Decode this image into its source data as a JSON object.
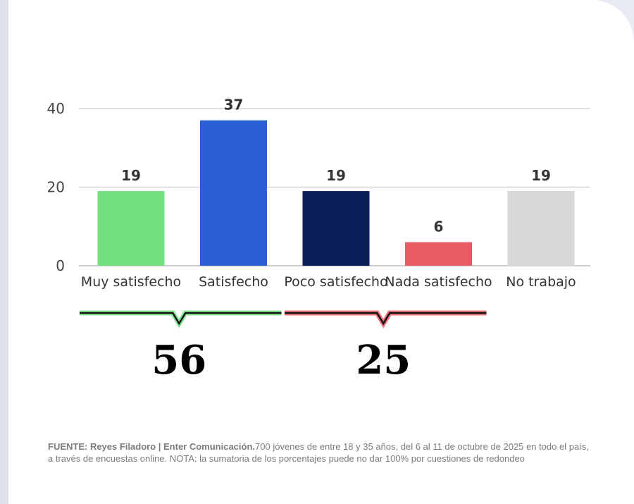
{
  "chart_data": {
    "type": "bar",
    "categories": [
      "Muy satisfecho",
      "Satisfecho",
      "Poco satisfecho",
      "Nada satisfecho",
      "No trabajo"
    ],
    "values": [
      19,
      37,
      19,
      6,
      19
    ],
    "colors": [
      "#72e27e",
      "#2b5fd4",
      "#0b1f5b",
      "#e85b65",
      "#d8d8d8"
    ],
    "yticks": [
      0,
      20,
      40
    ],
    "ylim": [
      0,
      40
    ],
    "grid": true,
    "groups": [
      {
        "total_label": "56",
        "color": "#72e27e",
        "covers": [
          "Muy satisfecho",
          "Satisfecho"
        ]
      },
      {
        "total_label": "25",
        "color": "#e85b65",
        "covers": [
          "Poco satisfecho",
          "Nada satisfecho"
        ]
      }
    ]
  },
  "footer": {
    "source_bold": "FUENTE: Reyes Filadoro | Enter Comunicación.",
    "source_text": "700 jóvenes de entre 18 y 35 años, del 6 al 11 de octubre de 2025 en todo el país, a través de encuestas online.  NOTA: la sumatoria de los porcentajes puede no dar 100% por cuestiones de redondeo"
  }
}
